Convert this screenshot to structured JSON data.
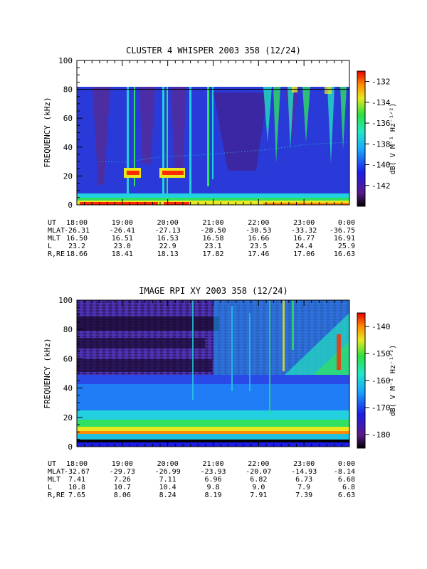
{
  "chart_data": [
    {
      "type": "heatmap",
      "title": "CLUSTER 4 WHISPER 2003 358 (12/24)",
      "ylabel": "FREQUENCY (kHz)",
      "ylim": [
        0,
        100
      ],
      "yticks": [
        "0",
        "20",
        "40",
        "60",
        "80",
        "100"
      ],
      "xticks": [
        "18:00",
        "19:00",
        "20:00",
        "21:00",
        "22:00",
        "23:00",
        "0:00"
      ],
      "data_max_frequency": 80,
      "colorbar": {
        "label": "dB( V M⁻¹ Hz⁻¹ᐟ²)",
        "range": [
          -144,
          -131
        ],
        "ticks": [
          "-132",
          "-134",
          "-136",
          "-138",
          "-140",
          "-142"
        ]
      },
      "ephemeris": [
        {
          "label": "UT",
          "values": [
            "18:00",
            "19:00",
            "20:00",
            "21:00",
            "22:00",
            "23:00",
            "0:00"
          ]
        },
        {
          "label": "MLAT",
          "values": [
            "-26.31",
            "-26.41",
            "-27.13",
            "-28.50",
            "-30.53",
            "-33.32",
            "-36.75"
          ]
        },
        {
          "label": "MLT",
          "values": [
            "16.50",
            "16.51",
            "16.53",
            "16.58",
            "16.66",
            "16.77",
            "16.91"
          ]
        },
        {
          "label": "L",
          "values": [
            "23.2",
            "23.0",
            "22.9",
            "23.1",
            "23.5",
            "24.4",
            "25.9"
          ]
        },
        {
          "label": "R,RE",
          "values": [
            "18.66",
            "18.41",
            "18.13",
            "17.82",
            "17.46",
            "17.06",
            "16.63"
          ]
        }
      ]
    },
    {
      "type": "heatmap",
      "title": "IMAGE RPI XY 2003 358 (12/24)",
      "ylabel": "FREQUENCY (kHz)",
      "ylim": [
        0,
        100
      ],
      "yticks": [
        "0",
        "20",
        "40",
        "60",
        "80",
        "100"
      ],
      "xticks": [
        "18:00",
        "19:00",
        "20:00",
        "21:00",
        "22:00",
        "23:00",
        "0:00"
      ],
      "colorbar": {
        "label": "dB( V M⁻¹ Hz⁻¹ᐟ²)",
        "range": [
          -185,
          -135
        ],
        "ticks": [
          "-140",
          "-150",
          "-160",
          "-170",
          "-180"
        ]
      },
      "ephemeris": [
        {
          "label": "UT",
          "values": [
            "18:00",
            "19:00",
            "20:00",
            "21:00",
            "22:00",
            "23:00",
            "0:00"
          ]
        },
        {
          "label": "MLAT",
          "values": [
            "-32.67",
            "-29.73",
            "-26.99",
            "-23.93",
            "-20.07",
            "-14.93",
            "-8.14"
          ]
        },
        {
          "label": "MLT",
          "values": [
            "7.41",
            "7.26",
            "7.11",
            "6.96",
            "6.82",
            "6.73",
            "6.68"
          ]
        },
        {
          "label": "L",
          "values": [
            "10.8",
            "10.7",
            "10.4",
            "9.8",
            "9.0",
            "7.9",
            "6.8"
          ]
        },
        {
          "label": "R,RE",
          "values": [
            "7.65",
            "8.06",
            "8.24",
            "8.19",
            "7.91",
            "7.39",
            "6.63"
          ]
        }
      ]
    }
  ]
}
